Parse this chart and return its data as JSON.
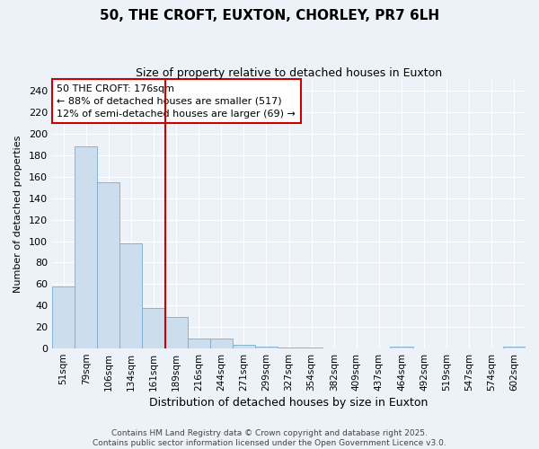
{
  "title": "50, THE CROFT, EUXTON, CHORLEY, PR7 6LH",
  "subtitle": "Size of property relative to detached houses in Euxton",
  "xlabel": "Distribution of detached houses by size in Euxton",
  "ylabel": "Number of detached properties",
  "footer_line1": "Contains HM Land Registry data © Crown copyright and database right 2025.",
  "footer_line2": "Contains public sector information licensed under the Open Government Licence v3.0.",
  "bin_labels": [
    "51sqm",
    "79sqm",
    "106sqm",
    "134sqm",
    "161sqm",
    "189sqm",
    "216sqm",
    "244sqm",
    "271sqm",
    "299sqm",
    "327sqm",
    "354sqm",
    "382sqm",
    "409sqm",
    "437sqm",
    "464sqm",
    "492sqm",
    "519sqm",
    "547sqm",
    "574sqm",
    "602sqm"
  ],
  "bar_values": [
    58,
    188,
    155,
    98,
    38,
    29,
    9,
    9,
    3,
    2,
    1,
    1,
    0,
    0,
    0,
    2,
    0,
    0,
    0,
    0,
    2
  ],
  "bar_color": "#ccdded",
  "bar_edge_color": "#7aabcf",
  "background_color": "#edf2f9",
  "grid_color": "#ffffff",
  "red_line_x": 4.5,
  "annotation_line1": "50 THE CROFT: 176sqm",
  "annotation_line2": "← 88% of detached houses are smaller (517)",
  "annotation_line3": "12% of semi-detached houses are larger (69) →",
  "annotation_box_color": "#ffffff",
  "annotation_box_edge": "#cc0000",
  "red_line_color": "#cc0000",
  "ylim": [
    0,
    250
  ],
  "yticks": [
    0,
    20,
    40,
    60,
    80,
    100,
    120,
    140,
    160,
    180,
    200,
    220,
    240
  ]
}
